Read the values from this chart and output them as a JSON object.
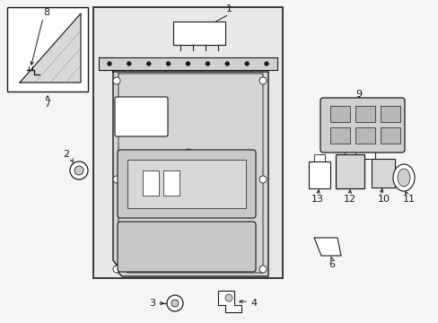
{
  "bg_color": "#f5f5f5",
  "line_color": "#1a1a1a",
  "panel_bg": "#e8e8e8",
  "white": "#ffffff",
  "light_gray": "#cccccc",
  "inset_bg": "#e8e8e8"
}
